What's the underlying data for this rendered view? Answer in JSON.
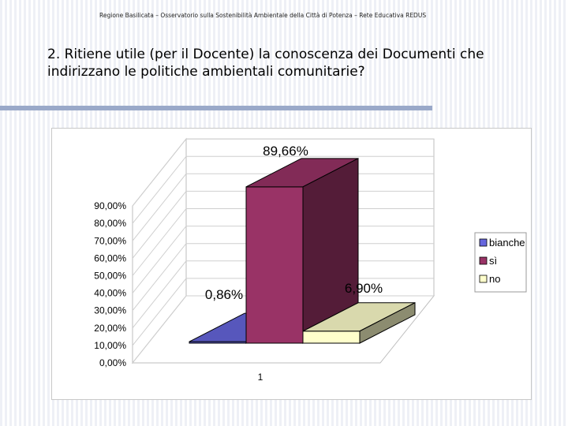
{
  "header": {
    "text": "Regione Basilicata – Osservatorio sulla Sostenibilità Ambientale della Città di Potenza – Rete Educativa REDUS"
  },
  "slide": {
    "title_line1": "2. Ritiene utile (per il Docente) la conoscenza dei Documenti che",
    "title_line2": "indirizzano le politiche ambientali comunitarie?"
  },
  "chart_data": {
    "type": "bar",
    "categories": [
      "1"
    ],
    "series": [
      {
        "name": "bianche",
        "values": [
          0.86
        ],
        "label": "0,86%",
        "color": "#6666dd"
      },
      {
        "name": "sì",
        "values": [
          89.66
        ],
        "label": "89,66%",
        "color": "#993366"
      },
      {
        "name": "no",
        "values": [
          6.9
        ],
        "label": "6,90%",
        "color": "#ffffcc"
      }
    ],
    "y_ticks": [
      "0,00%",
      "10,00%",
      "20,00%",
      "30,00%",
      "40,00%",
      "50,00%",
      "60,00%",
      "70,00%",
      "80,00%",
      "90,00%"
    ],
    "ylim": [
      0,
      90
    ],
    "legend_position": "right",
    "style": "3d-bar",
    "title": "",
    "xlabel": "",
    "ylabel": ""
  }
}
